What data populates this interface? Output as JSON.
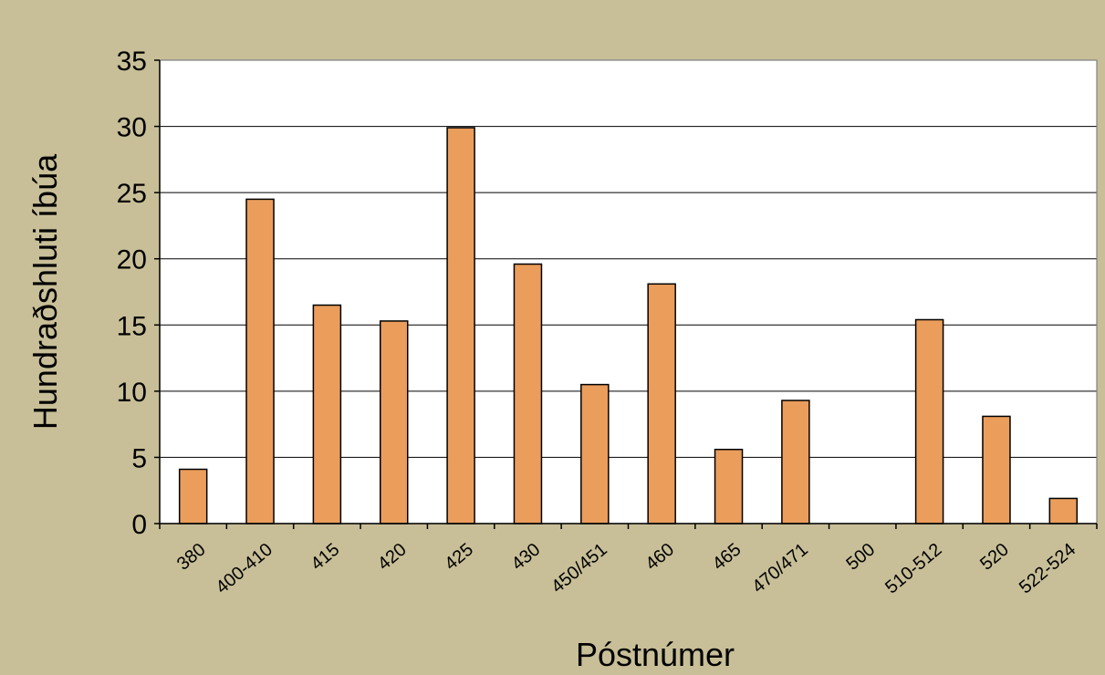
{
  "chart_data": {
    "type": "bar",
    "categories": [
      "380",
      "400-410",
      "415",
      "420",
      "425",
      "430",
      "450/451",
      "460",
      "465",
      "470/471",
      "500",
      "510-512",
      "520",
      "522-524"
    ],
    "values": [
      4.1,
      24.5,
      16.5,
      15.3,
      29.9,
      19.6,
      10.5,
      18.1,
      5.6,
      9.3,
      0,
      15.4,
      8.1,
      1.9
    ],
    "xlabel": "Póstnúmer",
    "ylabel": "Hundraðshluti íbúa",
    "ylim": [
      0,
      35
    ],
    "yticks": [
      "0",
      "5",
      "10",
      "15",
      "20",
      "25",
      "30",
      "35"
    ],
    "grid": true,
    "colors": {
      "background": "#c8bf98",
      "plot_area": "#ffffff",
      "bar_fill": "#eb9d5c",
      "bar_stroke": "#000000",
      "grid": "#000000"
    }
  }
}
